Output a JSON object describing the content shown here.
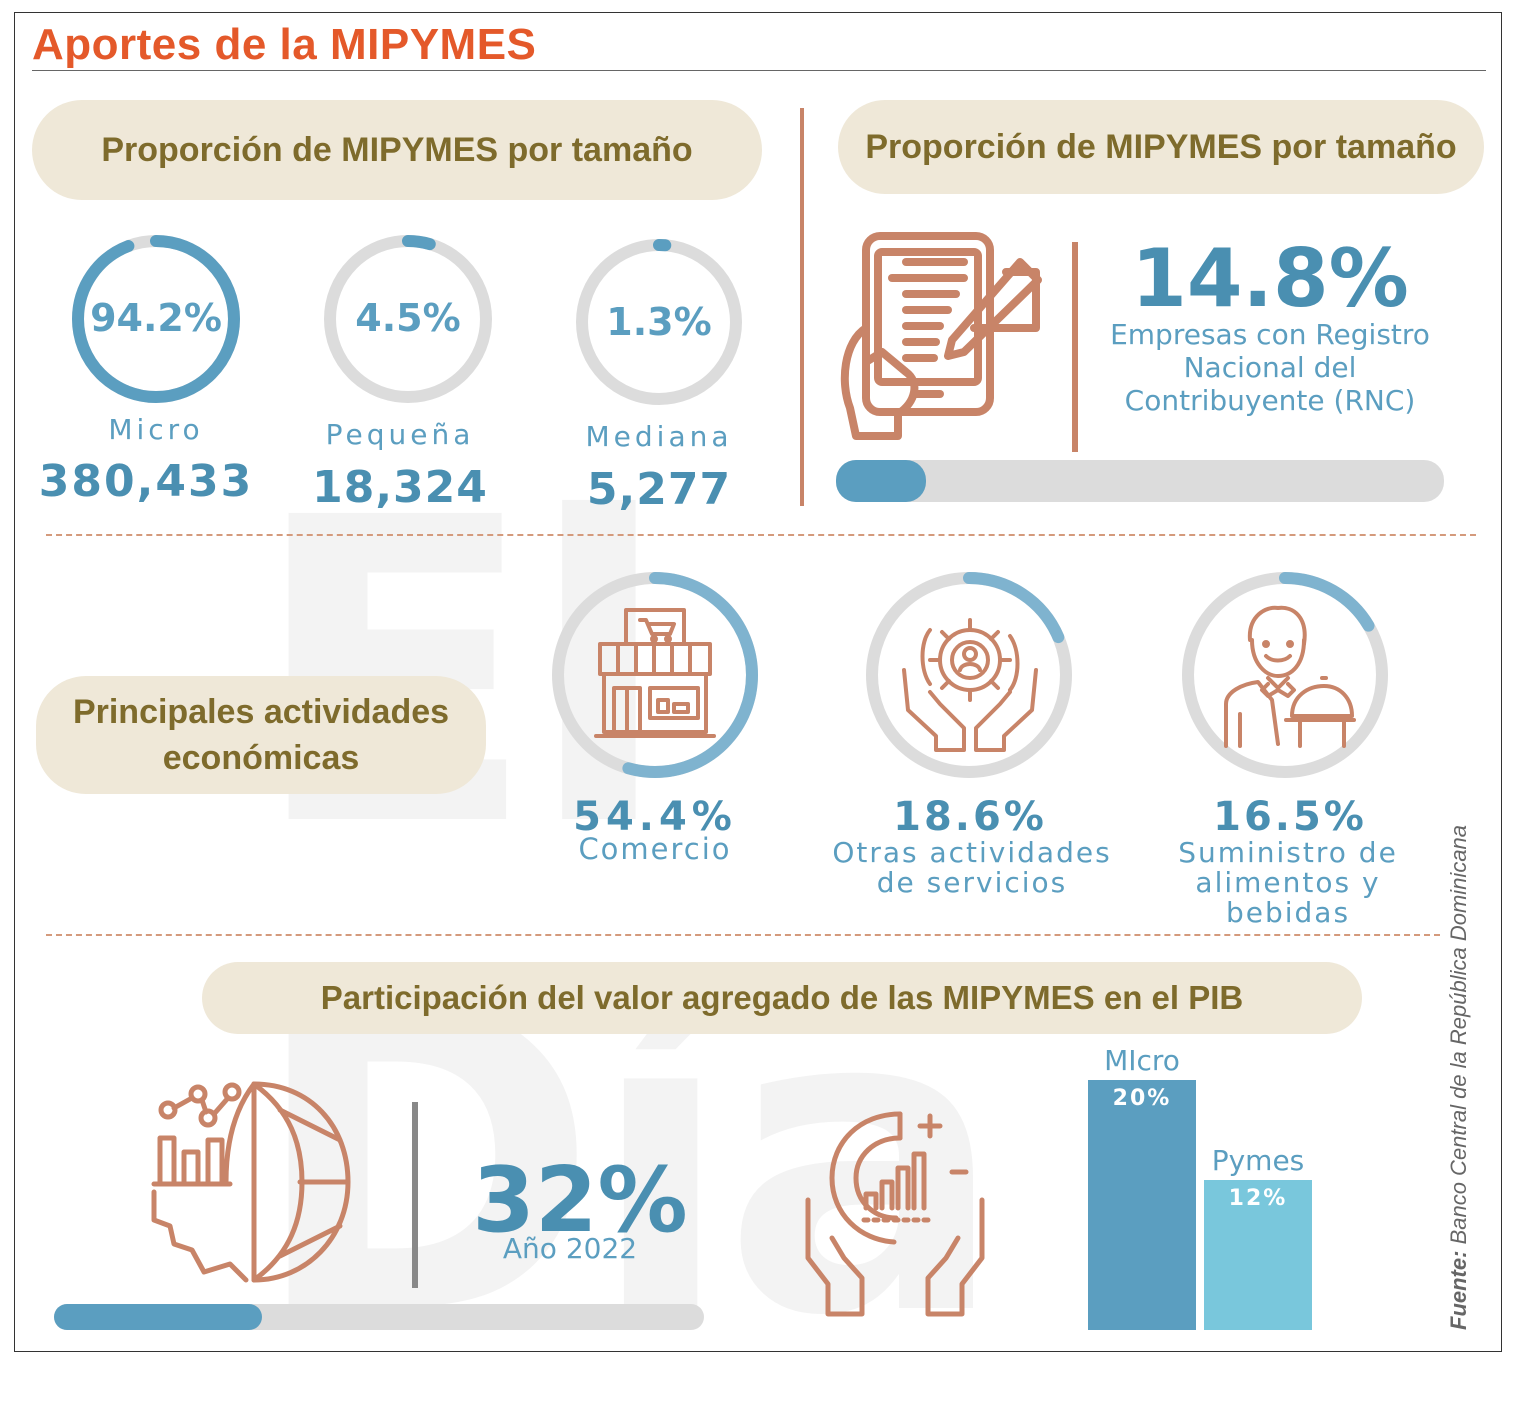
{
  "title": "Aportes de la MIPYMES",
  "watermark": "El Día",
  "section1": {
    "heading": "Proporción de MIPYMES por tamaño",
    "items": [
      {
        "label": "Micro",
        "percent_text": "94.2%",
        "percent": 94.2,
        "count": "380,433"
      },
      {
        "label": "Pequeña",
        "percent_text": "4.5%",
        "percent": 4.5,
        "count": "18,324"
      },
      {
        "label": "Mediana",
        "percent_text": "1.3%",
        "percent": 1.3,
        "count": "5,277"
      }
    ]
  },
  "section2": {
    "heading": "Proporción de MIPYMES por tamaño",
    "percent_text": "14.8%",
    "percent": 14.8,
    "desc_line1": "Empresas con Registro",
    "desc_line2": "Nacional del",
    "desc_line3": "Contribuyente (RNC)",
    "icon": "tablet-signature-icon"
  },
  "section3": {
    "heading_line1": "Principales actividades",
    "heading_line2": "económicas",
    "items": [
      {
        "percent_text": "54.4%",
        "percent": 54.4,
        "label_line1": "Comercio",
        "label_line2": "",
        "icon": "store-icon"
      },
      {
        "percent_text": "18.6%",
        "percent": 18.6,
        "label_line1": "Otras actividades",
        "label_line2": "de servicios",
        "icon": "gear-hands-icon"
      },
      {
        "percent_text": "16.5%",
        "percent": 16.5,
        "label_line1": "Suministro de",
        "label_line2": "alimentos y bebidas",
        "icon": "waiter-icon"
      }
    ]
  },
  "section4": {
    "heading": "Participación del valor agregado de las MIPYMES en el PIB",
    "percent_text": "32%",
    "percent": 32,
    "year_label": "Año 2022",
    "icons": [
      "globe-chart-icon",
      "hands-chart-icon"
    ]
  },
  "chart_data": {
    "type": "bar",
    "categories": [
      "MIcro",
      "Pymes"
    ],
    "values": [
      20,
      12
    ],
    "value_labels": [
      "20%",
      "12%"
    ],
    "ylim": [
      0,
      20
    ],
    "colors": [
      "#5b9ec0",
      "#79c7dc"
    ]
  },
  "source": {
    "prefix": "Fuente:",
    "text": " Banco Central de la República Dominicana"
  },
  "colors": {
    "accent": "#e4592a",
    "blue": "#5b9ec0",
    "light_blue": "#79c7dc",
    "pill": "#efe8d8",
    "pill_text": "#7e6b2c",
    "icon": "#c88468",
    "track": "#dcdcdc"
  }
}
